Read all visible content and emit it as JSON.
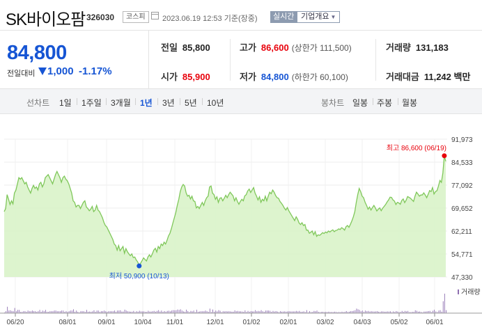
{
  "stock": {
    "name": "SK바이오팜",
    "code": "326030",
    "market": "코스피",
    "datetime": "2023.06.19 12:53",
    "basis": "기준(장중)",
    "realtime_label": "실시간",
    "overview_label": "기업개요"
  },
  "price": {
    "current": "84,800",
    "change_label": "전일대비",
    "change": "1,000",
    "change_pct": "-1.17%",
    "direction": "down"
  },
  "quote": {
    "prev_close_label": "전일",
    "prev_close": "85,800",
    "high_label": "고가",
    "high": "86,600",
    "upper_limit": "(상한가 111,500)",
    "volume_label": "거래량",
    "volume": "131,183",
    "open_label": "시가",
    "open": "85,900",
    "low_label": "저가",
    "low": "84,800",
    "lower_limit": "(하한가 60,100)",
    "amount_label": "거래대금",
    "amount": "11,242 백만"
  },
  "tabs": {
    "line_chart_label": "선차트",
    "periods": [
      "1일",
      "1주일",
      "3개월",
      "1년",
      "3년",
      "5년",
      "10년"
    ],
    "active_period": "1년",
    "candle_chart_label": "봉차트",
    "candles": [
      "일봉",
      "주봉",
      "월봉"
    ]
  },
  "colors": {
    "up": "#e8000b",
    "down": "#1655d4",
    "area_line": "#7fc75a",
    "area_fill": "#d9f3c9"
  },
  "chart_data": {
    "type": "area",
    "title": "",
    "y_ticks": [
      "91,973",
      "84,533",
      "77,092",
      "69,652",
      "62,211",
      "54,771",
      "47,330"
    ],
    "ylim": [
      47330,
      91973
    ],
    "x_ticks": [
      "06/20",
      "08/01",
      "09/01",
      "10/04",
      "11/01",
      "12/01",
      "01/02",
      "02/01",
      "03/02",
      "04/03",
      "05/02",
      "06/01"
    ],
    "high_annotation": "최고 86,600 (06/19)",
    "low_annotation": "최저 50,900 (10/13)",
    "volume_label": "거래량",
    "series": [
      {
        "values": [
          68500,
          69500,
          74000,
          72500,
          70800,
          72000,
          71000,
          74500,
          75500,
          77500,
          79500,
          79000,
          79500,
          78500,
          77500,
          78000,
          76500,
          75500,
          74500,
          76000,
          77000,
          76000,
          76500,
          75500,
          77500,
          78000,
          76500,
          77500,
          79500,
          80000,
          80500,
          79500,
          78500,
          77500,
          79000,
          80500,
          81500,
          80500,
          79500,
          78000,
          79500,
          80000,
          79000,
          78500,
          77500,
          76000,
          74500,
          72000,
          71500,
          70000,
          70500,
          70500,
          69500,
          70500,
          71500,
          72000,
          70000,
          69500,
          68800,
          69300,
          70200,
          68500,
          69000,
          70500,
          69000,
          68500,
          67500,
          66500,
          65000,
          64000,
          63500,
          62500,
          61500,
          60500,
          59500,
          58000,
          57500,
          56000,
          57500,
          55800,
          56500,
          57200,
          55000,
          56500,
          55500,
          54800,
          54200,
          54800,
          53600,
          53800,
          52800,
          52200,
          50900,
          51800,
          52600,
          53500,
          53000,
          52500,
          53800,
          54500,
          53800,
          54800,
          56000,
          56600,
          55400,
          57200,
          56500,
          58000,
          57500,
          58600,
          58000,
          59200,
          60600,
          61500,
          63000,
          64800,
          66500,
          68200,
          70500,
          72500,
          75000,
          76500,
          77300,
          76800,
          74600,
          73500,
          73800,
          72600,
          73500,
          72000,
          71800,
          69700,
          70200,
          69500,
          70500,
          71500,
          70500,
          72000,
          73000,
          73500,
          76500,
          76800,
          74500,
          74000,
          72500,
          73300,
          71500,
          72800,
          73000,
          72000,
          72800,
          73800,
          73000,
          74000,
          74800,
          74200,
          73600,
          72000,
          73000,
          71800,
          70900,
          71800,
          72500,
          72000,
          73600,
          74000,
          75200,
          75800,
          74700,
          75500,
          76300,
          74500,
          73500,
          72300,
          73300,
          71500,
          72500,
          72000,
          73500,
          72000,
          73500,
          74800,
          74300,
          75500,
          74800,
          73700,
          73000,
          72800,
          71800,
          71200,
          70500,
          69600,
          69000,
          69800,
          68800,
          68000,
          67200,
          66400,
          65600,
          66800,
          66000,
          64800,
          64300,
          64900,
          64000,
          64300,
          62500,
          62500,
          61500,
          61800,
          62200,
          61000,
          62000,
          60500,
          61000,
          60800,
          61200,
          61700,
          61400,
          61900,
          61600,
          62200,
          61900,
          62300,
          62600,
          62000,
          62400,
          62500,
          62900,
          62700,
          63300,
          63000,
          62500,
          63600,
          64000,
          63400,
          64400,
          65500,
          66800,
          68500,
          71500,
          74000,
          76000,
          75000,
          73500,
          73000,
          71500,
          70500,
          69300,
          70000,
          69000,
          69800,
          70500,
          69700,
          68700,
          69300,
          69700,
          68800,
          69600,
          70200,
          70800,
          71600,
          72300,
          73200,
          73100,
          72300,
          71900,
          70800,
          71500,
          71300,
          70900,
          72100,
          72600,
          71400,
          72200,
          73400,
          73100,
          72800,
          72300,
          71800,
          73500,
          74800,
          74200,
          73500,
          73900,
          73900,
          74600,
          73900,
          73000,
          74100,
          75300,
          75000,
          76300,
          74200,
          75000,
          75300,
          76800,
          78600,
          78000,
          81000,
          86600,
          84800
        ]
      }
    ]
  }
}
